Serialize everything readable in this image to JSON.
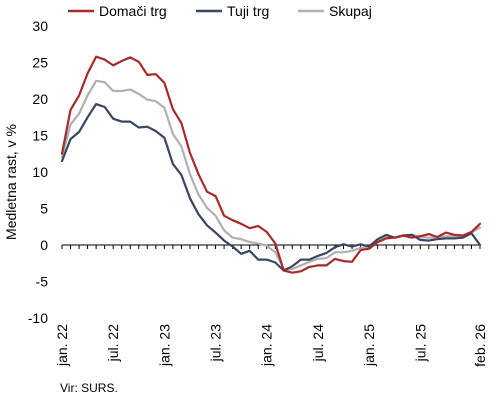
{
  "chart_data": {
    "type": "line",
    "ylabel": "Medletna rast, v %",
    "ylim": [
      -10,
      30
    ],
    "yticks": [
      -10,
      -5,
      0,
      5,
      10,
      15,
      20,
      25,
      30
    ],
    "xtick_labels": [
      "jan. 22",
      "jul. 22",
      "jan. 23",
      "jul. 23",
      "jan. 24",
      "jul. 24",
      "jan. 25",
      "jul. 25",
      "feb. 26"
    ],
    "xtick_index": [
      0,
      6,
      12,
      18,
      24,
      30,
      36,
      42,
      49
    ],
    "legend_position": "top",
    "source": "Vir: SURS.",
    "grid": false,
    "series": [
      {
        "name": "Domači trg",
        "color": "#a52a2a",
        "values": [
          12.5,
          18.5,
          20.5,
          23.5,
          25.8,
          25.4,
          24.6,
          25.2,
          25.7,
          25.1,
          23.3,
          23.4,
          22.2,
          18.6,
          16.7,
          12.6,
          9.7,
          7.3,
          6.7,
          4.0,
          3.4,
          2.9,
          2.3,
          2.6,
          1.8,
          0.2,
          -3.5,
          -3.8,
          -3.6,
          -3.0,
          -2.8,
          -2.8,
          -1.9,
          -2.2,
          -2.3,
          -0.7,
          -0.5,
          0.4,
          0.9,
          1.0,
          1.3,
          1.0,
          1.2,
          1.5,
          1.1,
          1.7,
          1.4,
          1.3,
          1.8,
          2.9
        ]
      },
      {
        "name": "Tuji trg",
        "color": "#3a4562",
        "values": [
          11.5,
          14.5,
          15.5,
          17.5,
          19.3,
          18.9,
          17.3,
          16.9,
          16.9,
          16.1,
          16.2,
          15.6,
          14.7,
          11.1,
          9.6,
          6.4,
          4.2,
          2.7,
          1.7,
          0.6,
          -0.2,
          -1.2,
          -0.8,
          -2.0,
          -2.0,
          -2.4,
          -3.5,
          -2.9,
          -2.0,
          -2.0,
          -1.5,
          -1.1,
          -0.3,
          0.1,
          -0.2,
          0.1,
          -0.2,
          0.8,
          1.4,
          1.0,
          1.3,
          1.4,
          0.7,
          0.6,
          0.8,
          0.9,
          0.9,
          1.0,
          1.6,
          0.0
        ]
      },
      {
        "name": "Skupaj",
        "color": "#b0b0b0",
        "values": [
          12.0,
          16.5,
          18.0,
          20.5,
          22.5,
          22.3,
          21.1,
          21.1,
          21.3,
          20.7,
          19.9,
          19.7,
          18.8,
          15.2,
          13.5,
          9.7,
          6.9,
          5.1,
          4.0,
          2.0,
          1.0,
          0.8,
          0.4,
          0.2,
          -0.1,
          -1.0,
          -3.3,
          -3.3,
          -2.8,
          -2.3,
          -1.9,
          -1.8,
          -1.0,
          -1.0,
          -0.8,
          -0.4,
          -0.3,
          0.6,
          1.2,
          1.0,
          1.3,
          1.4,
          1.1,
          1.0,
          1.0,
          1.2,
          1.2,
          1.1,
          1.7,
          2.4
        ]
      }
    ]
  }
}
